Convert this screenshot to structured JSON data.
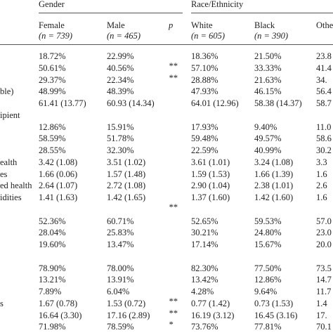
{
  "table": {
    "groups": [
      "Gender",
      "Race/Ethnicity"
    ],
    "columns": [
      {
        "name": "Female",
        "n": "(n = 739)"
      },
      {
        "name": "Male",
        "n": "(n = 465)"
      },
      {
        "name": "p"
      },
      {
        "name": "White",
        "n": "(n = 605)"
      },
      {
        "name": "Black",
        "n": "(n = 390)"
      },
      {
        "name": "Othe"
      }
    ],
    "rows": [
      {
        "label": null,
        "cells": [
          "18.72%",
          "22.99%",
          null,
          "18.36%",
          "21.50%",
          "23.8"
        ]
      },
      {
        "label": null,
        "cells": [
          "50.61%",
          "40.56%",
          "**",
          "57.10%",
          "33.33%",
          "41.4"
        ]
      },
      {
        "label": null,
        "cells": [
          "29.37%",
          "22.34%",
          "**",
          "28.88%",
          "21.63%",
          "34."
        ]
      },
      {
        "label": "ble)",
        "cells": [
          "48.99%",
          "48.39%",
          null,
          "47.93%",
          "46.15%",
          "56.4"
        ]
      },
      {
        "label": null,
        "cells": [
          "61.41 (13.77)",
          "60.93 (14.34)",
          null,
          "64.01 (12.96)",
          "58.38 (14.37)",
          "58.7"
        ]
      },
      {
        "label": "ipient",
        "cells": [
          null,
          null,
          null,
          null,
          null,
          null
        ]
      },
      {
        "label": null,
        "cells": [
          "12.86%",
          "15.91%",
          null,
          "17.93%",
          "9.40%",
          "11.0"
        ]
      },
      {
        "label": null,
        "cells": [
          "58.59%",
          "51.78%",
          null,
          "59.48%",
          "49.57%",
          "58.6"
        ]
      },
      {
        "label": null,
        "cells": [
          "28.55%",
          "32.30%",
          null,
          "22.59%",
          "40.99%",
          "30.2"
        ]
      },
      {
        "label": "ealth",
        "cells": [
          "3.42 (1.08)",
          "3.51 (1.02)",
          null,
          "3.61 (1.01)",
          "3.24 (1.08)",
          "3.3"
        ]
      },
      {
        "label": "es",
        "cells": [
          "1.66 (0.06)",
          "1.57 (1.48)",
          null,
          "1.59 (1.53)",
          "1.66 (1.39)",
          "1.6"
        ]
      },
      {
        "label": "ed health",
        "cells": [
          "2.64 (1.07)",
          "2.72 (1.08)",
          null,
          "2.90 (1.04)",
          "2.38 (1.01)",
          "2.6"
        ]
      },
      {
        "label": "idities",
        "cells": [
          "1.41 (1.63)",
          "1.42 (1.65)",
          null,
          "1.37 (1.60)",
          "1.42 (1.60)",
          "1.6"
        ]
      },
      {
        "label": null,
        "cells": [
          null,
          null,
          "**",
          null,
          null,
          null
        ]
      },
      {
        "label": null,
        "cells": [
          "52.36%",
          "60.71%",
          null,
          "52.65%",
          "59.53%",
          "57.0"
        ]
      },
      {
        "label": null,
        "cells": [
          "28.04%",
          "25.83%",
          null,
          "30.21%",
          "24.80%",
          "23.0"
        ]
      },
      {
        "label": null,
        "cells": [
          "19.60%",
          "13.47%",
          null,
          "17.14%",
          "15.67%",
          "20.0"
        ]
      },
      {
        "label": null,
        "cells": [
          null,
          null,
          null,
          null,
          null,
          null
        ]
      },
      {
        "label": null,
        "cells": [
          "78.90%",
          "78.00%",
          null,
          "82.30%",
          "77.50%",
          "73.5"
        ]
      },
      {
        "label": null,
        "cells": [
          "13.21%",
          "13.91%",
          null,
          "13.42%",
          "12.86%",
          "14.7"
        ]
      },
      {
        "label": null,
        "cells": [
          "7.89%",
          "6.04%",
          null,
          "4.28%",
          "9.64%",
          "11.7"
        ]
      },
      {
        "label": "s",
        "cells": [
          "1.67 (0.78)",
          "1.53 (0.72)",
          "**",
          "0.77 (1.42)",
          "0.73 (1.53)",
          "1.4"
        ]
      },
      {
        "label": null,
        "cells": [
          "16.64 (3.30)",
          "17.16 (2.89)",
          "**",
          "16.19 (3.12)",
          "16.45 (3.16)",
          "17."
        ]
      },
      {
        "label": null,
        "cells": [
          "71.98%",
          "78.59%",
          "*",
          "73.76%",
          "77.81%",
          "70.1"
        ]
      }
    ]
  }
}
